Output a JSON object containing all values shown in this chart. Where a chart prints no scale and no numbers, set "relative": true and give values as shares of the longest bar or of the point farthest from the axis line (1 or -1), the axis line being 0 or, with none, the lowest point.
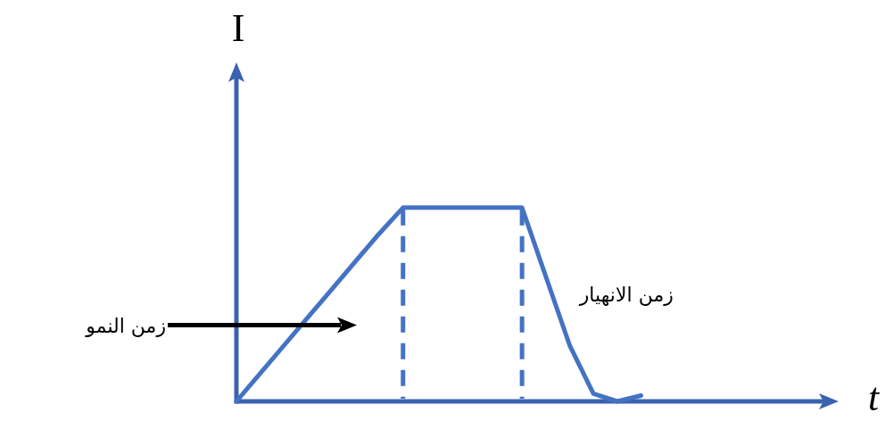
{
  "chart_data": {
    "type": "line",
    "relative": true,
    "xlabel": "t",
    "ylabel": "I",
    "marker": "none",
    "line_style": "solid",
    "categories": [
      null,
      null,
      null,
      null,
      null,
      null,
      null,
      null,
      null,
      null,
      null,
      null,
      null,
      null,
      null,
      null,
      null,
      null,
      null,
      null,
      null,
      null,
      null,
      null,
      null,
      null
    ],
    "series": [
      {
        "color": "#4472c4",
        "values": [
          0,
          0.144,
          0.289,
          0.433,
          0.577,
          0.722,
          0.866,
          1,
          1,
          1,
          1,
          1,
          1,
          0.645,
          0.29,
          0.04,
          0,
          0.03,
          null,
          null,
          null,
          null,
          null,
          null,
          null,
          null
        ]
      }
    ],
    "annotations": [
      "زمن النمو",
      "زمن الانهيار"
    ]
  }
}
